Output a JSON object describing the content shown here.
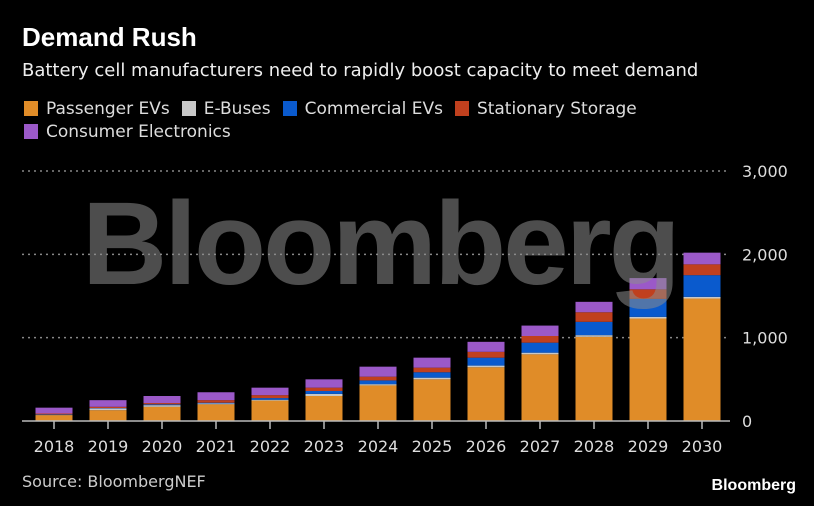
{
  "title": "Demand Rush",
  "subtitle": "Battery cell manufacturers need to rapidly boost capacity to meet demand",
  "source": "Source: BloombergNEF",
  "brand": "Bloomberg",
  "watermark": "Bloomberg",
  "chart_data": {
    "type": "bar",
    "stacked": true,
    "categories": [
      "2018",
      "2019",
      "2020",
      "2021",
      "2022",
      "2023",
      "2024",
      "2025",
      "2026",
      "2027",
      "2028",
      "2029",
      "2030"
    ],
    "series": [
      {
        "name": "Passenger EVs",
        "color": "#e08c28",
        "values": [
          70,
          130,
          170,
          200,
          245,
          300,
          427,
          500,
          645,
          800,
          1010,
          1230,
          1470
        ]
      },
      {
        "name": "E-Buses",
        "color": "#c8c8c8",
        "values": [
          5,
          20,
          20,
          10,
          10,
          25,
          15,
          20,
          20,
          20,
          20,
          20,
          20
        ]
      },
      {
        "name": "Commercial EVs",
        "color": "#0a5acd",
        "values": [
          5,
          5,
          10,
          10,
          20,
          35,
          45,
          65,
          95,
          120,
          160,
          215,
          260
        ]
      },
      {
        "name": "Stationary Storage",
        "color": "#c0401e",
        "values": [
          10,
          15,
          15,
          30,
          35,
          40,
          45,
          55,
          70,
          80,
          115,
          115,
          130
        ]
      },
      {
        "name": "Consumer Electronics",
        "color": "#9b59c8",
        "values": [
          70,
          80,
          85,
          95,
          90,
          100,
          120,
          120,
          120,
          125,
          125,
          135,
          140
        ]
      }
    ],
    "yticks": [
      0,
      1000,
      2000,
      3000
    ],
    "ytick_labels": [
      "0",
      "1,000",
      "2,000",
      "3,000"
    ],
    "ylim": [
      0,
      3000
    ],
    "y_axis_position": "right",
    "grid": true,
    "legend_position": "top-left"
  }
}
